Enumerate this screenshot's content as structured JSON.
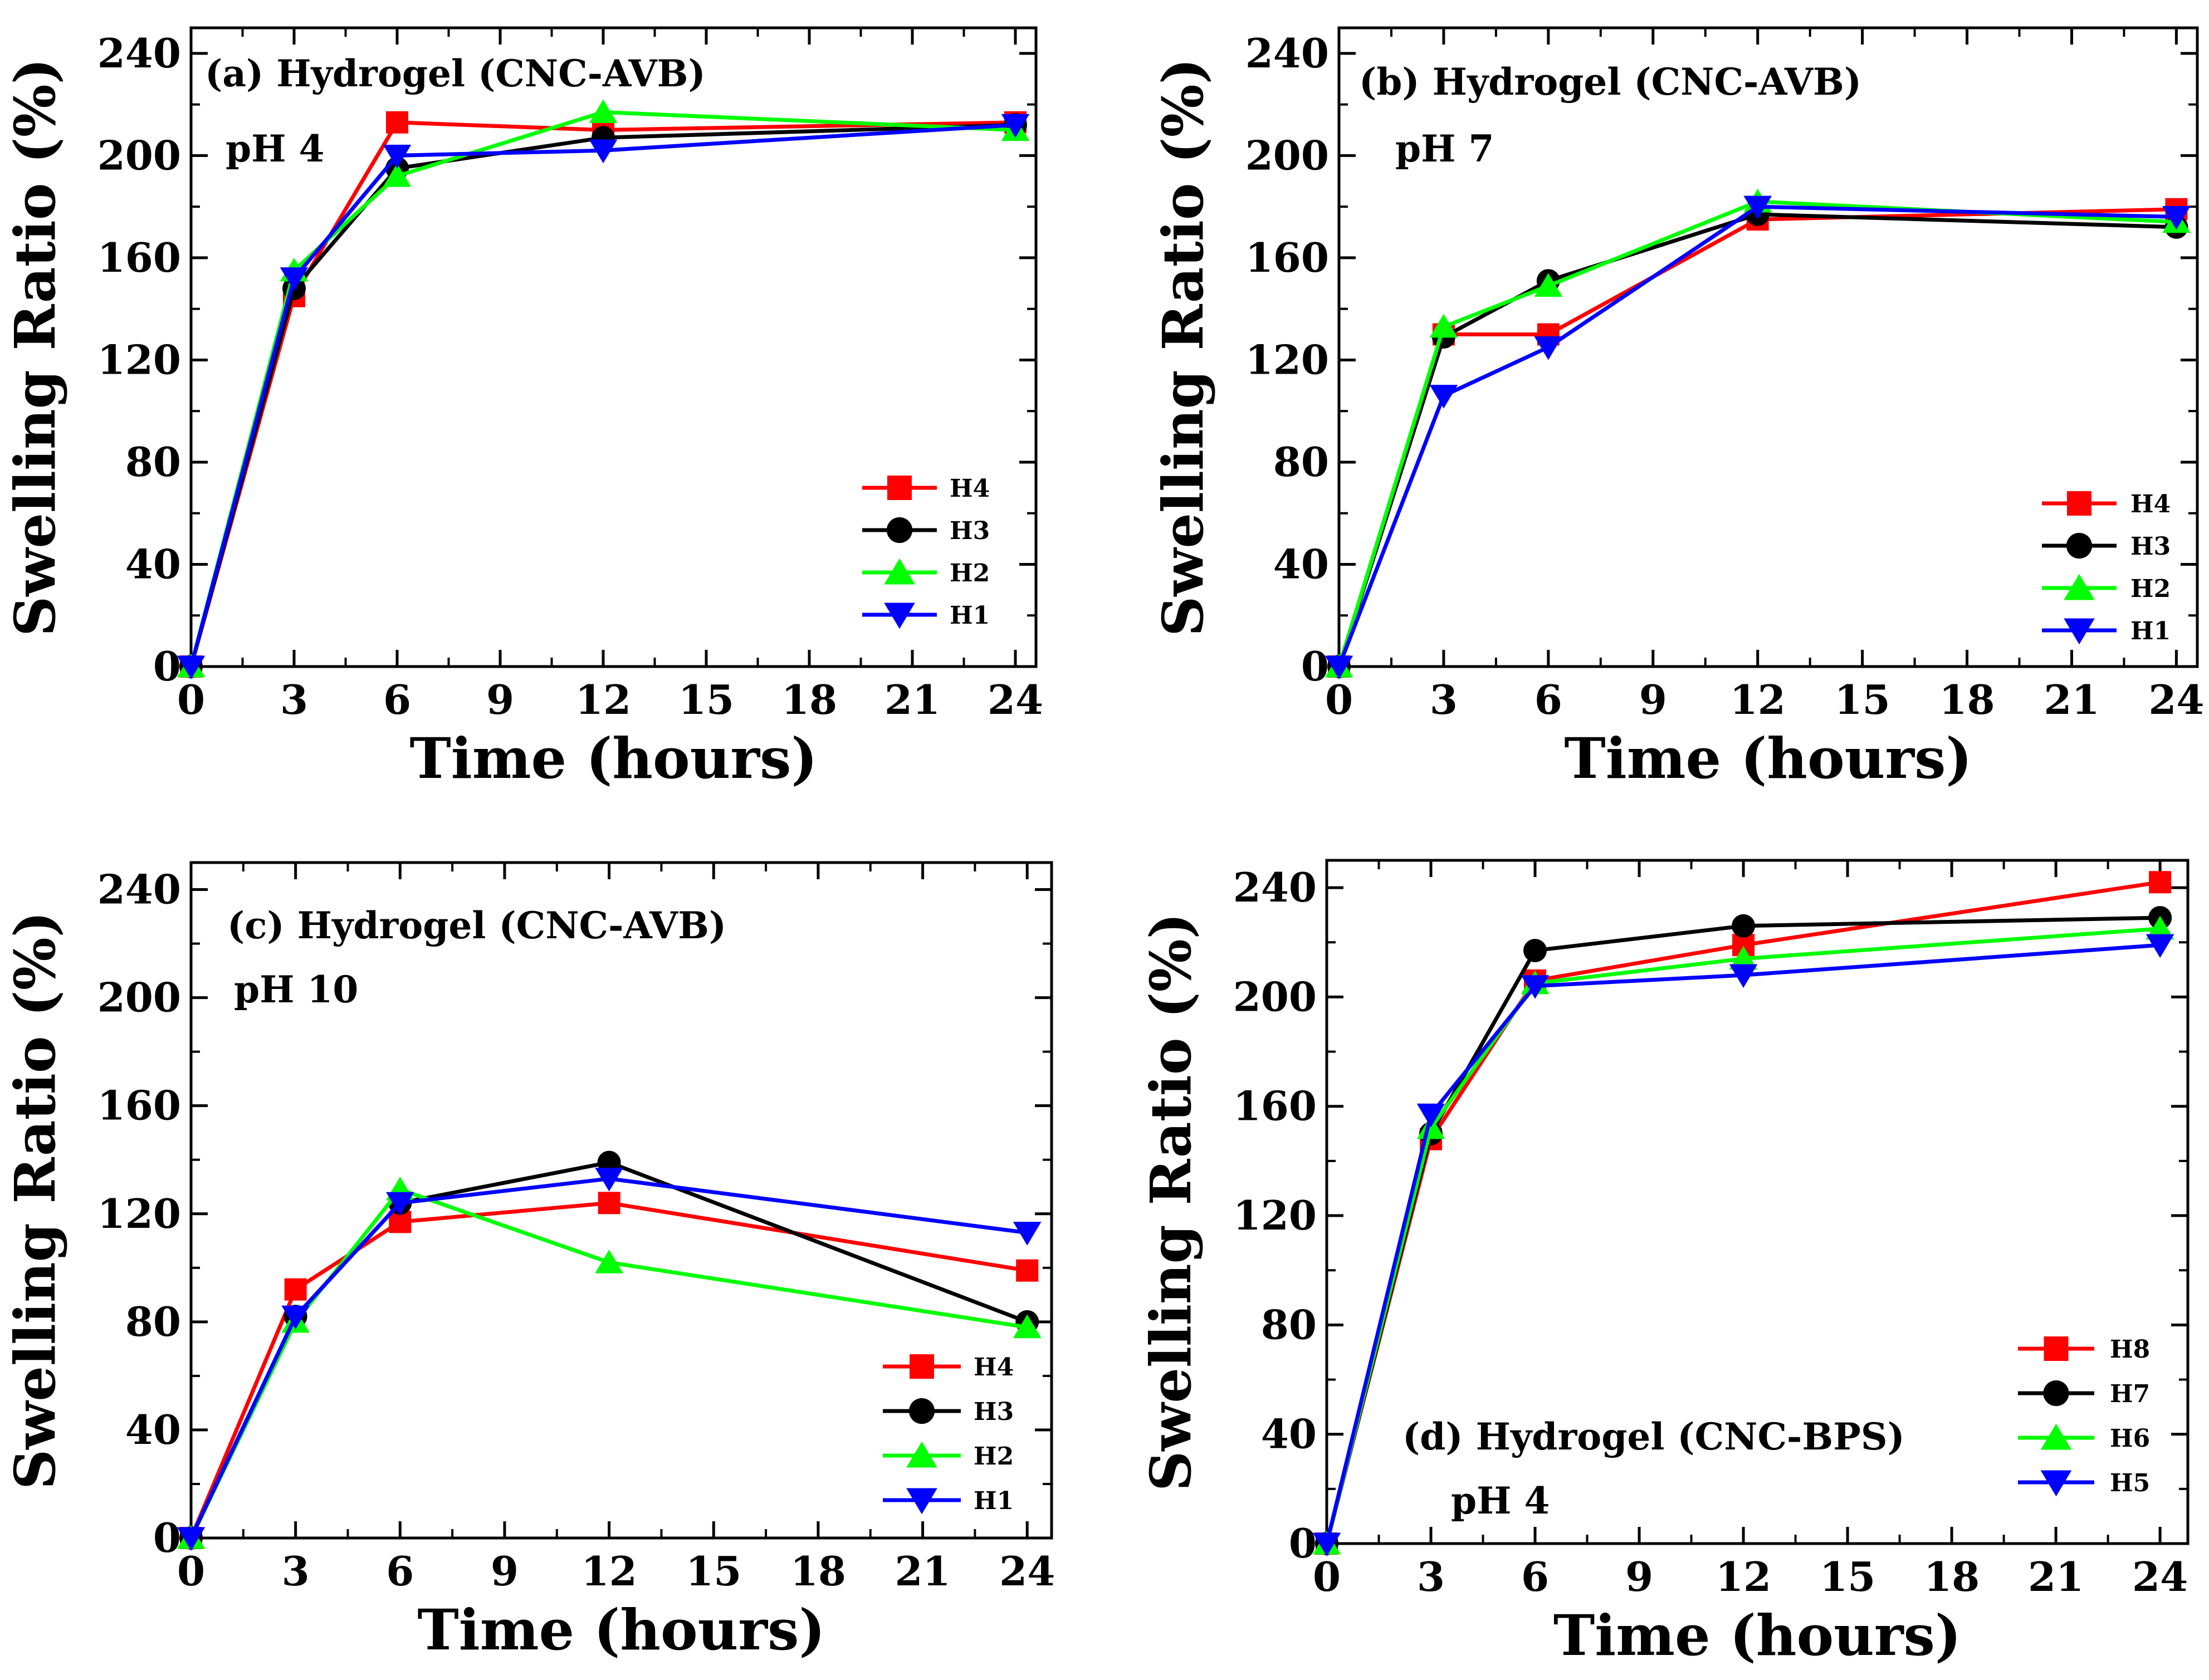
{
  "chart_data": [
    {
      "type": "line",
      "title": "(a) Hydrogel (CNC-AVB)",
      "subtitle": "pH 4",
      "xlabel": "Time (hours)",
      "ylabel": "Swelling Ratio (%)",
      "xlim": [
        0,
        25
      ],
      "ylim": [
        0,
        250
      ],
      "xticks": [
        0,
        3,
        6,
        9,
        12,
        15,
        18,
        21,
        24
      ],
      "yticks": [
        0,
        40,
        80,
        120,
        160,
        200,
        240
      ],
      "x": [
        0,
        3,
        6,
        12,
        24
      ],
      "series": [
        {
          "name": "H4",
          "color": "#ff0000",
          "marker": "square",
          "values": [
            0,
            145,
            213,
            210,
            213
          ]
        },
        {
          "name": "H3",
          "color": "#000000",
          "marker": "circle",
          "values": [
            0,
            148,
            195,
            207,
            212
          ]
        },
        {
          "name": "H2",
          "color": "#00ff00",
          "marker": "triangle-up",
          "values": [
            0,
            155,
            192,
            217,
            210
          ]
        },
        {
          "name": "H1",
          "color": "#0000ff",
          "marker": "triangle-down",
          "values": [
            0,
            152,
            200,
            202,
            212
          ]
        }
      ],
      "legend": "bottom-right"
    },
    {
      "type": "line",
      "title": "(b) Hydrogel (CNC-AVB)",
      "subtitle": "pH 7",
      "xlabel": "Time (hours)",
      "ylabel": "Swelling Ratio (%)",
      "xlim": [
        0,
        25
      ],
      "ylim": [
        0,
        250
      ],
      "xticks": [
        0,
        3,
        6,
        9,
        12,
        15,
        18,
        21,
        24
      ],
      "yticks": [
        0,
        40,
        80,
        120,
        160,
        200,
        240
      ],
      "x": [
        0,
        3,
        6,
        12,
        24
      ],
      "series": [
        {
          "name": "H4",
          "color": "#ff0000",
          "marker": "square",
          "values": [
            0,
            130,
            130,
            175,
            179
          ]
        },
        {
          "name": "H3",
          "color": "#000000",
          "marker": "circle",
          "values": [
            0,
            129,
            151,
            177,
            172
          ]
        },
        {
          "name": "H2",
          "color": "#00ff00",
          "marker": "triangle-up",
          "values": [
            0,
            133,
            149,
            182,
            174
          ]
        },
        {
          "name": "H1",
          "color": "#0000ff",
          "marker": "triangle-down",
          "values": [
            0,
            106,
            125,
            180,
            176
          ]
        }
      ],
      "legend": "bottom-right"
    },
    {
      "type": "line",
      "title": "(c) Hydrogel (CNC-AVB)",
      "subtitle": "pH 10",
      "xlabel": "Time (hours)",
      "ylabel": "Swelling Ratio (%)",
      "xlim": [
        0,
        25
      ],
      "ylim": [
        0,
        250
      ],
      "xticks": [
        0,
        3,
        6,
        9,
        12,
        15,
        18,
        21,
        24
      ],
      "yticks": [
        0,
        40,
        80,
        120,
        160,
        200,
        240
      ],
      "x": [
        0,
        3,
        6,
        12,
        24
      ],
      "series": [
        {
          "name": "H4",
          "color": "#ff0000",
          "marker": "square",
          "values": [
            0,
            92,
            117,
            124,
            99
          ]
        },
        {
          "name": "H3",
          "color": "#000000",
          "marker": "circle",
          "values": [
            0,
            82,
            124,
            139,
            80
          ]
        },
        {
          "name": "H2",
          "color": "#00ff00",
          "marker": "triangle-up",
          "values": [
            0,
            80,
            129,
            102,
            78
          ]
        },
        {
          "name": "H1",
          "color": "#0000ff",
          "marker": "triangle-down",
          "values": [
            0,
            82,
            124,
            133,
            113
          ]
        }
      ],
      "legend": "bottom-right"
    },
    {
      "type": "line",
      "title": "(d) Hydrogel (CNC-BPS)",
      "subtitle": "pH 4",
      "xlabel": "Time (hours)",
      "ylabel": "Swelling Ratio (%)",
      "xlim": [
        0,
        25
      ],
      "ylim": [
        0,
        250
      ],
      "xticks": [
        0,
        3,
        6,
        9,
        12,
        15,
        18,
        21,
        24
      ],
      "yticks": [
        0,
        40,
        80,
        120,
        160,
        200,
        240
      ],
      "x": [
        0,
        3,
        6,
        12,
        24
      ],
      "series": [
        {
          "name": "H8",
          "color": "#ff0000",
          "marker": "square",
          "values": [
            0,
            148,
            206,
            219,
            242
          ]
        },
        {
          "name": "H7",
          "color": "#000000",
          "marker": "circle",
          "values": [
            0,
            150,
            217,
            226,
            229
          ]
        },
        {
          "name": "H6",
          "color": "#00ff00",
          "marker": "triangle-up",
          "values": [
            0,
            152,
            205,
            214,
            225
          ]
        },
        {
          "name": "H5",
          "color": "#0000ff",
          "marker": "triangle-down",
          "values": [
            0,
            157,
            204,
            208,
            219
          ]
        }
      ],
      "legend": "right"
    }
  ]
}
